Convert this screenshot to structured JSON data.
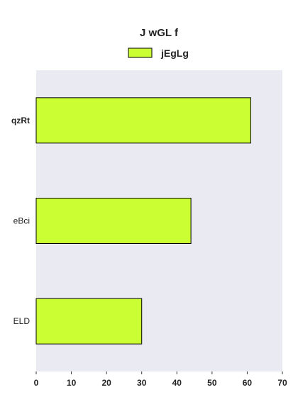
{
  "chart_data": {
    "type": "bar",
    "orientation": "horizontal",
    "title": "J wGL f",
    "categories": [
      "qzRt",
      "eBci",
      "ELD"
    ],
    "series": [
      {
        "name": "jEgLg",
        "values": [
          61,
          44,
          30
        ],
        "color": "#ccff33"
      }
    ],
    "xlabel": "",
    "ylabel": "",
    "xlim": [
      0,
      70
    ],
    "xticks": [
      0,
      10,
      20,
      30,
      40,
      50,
      60,
      70
    ],
    "grid": false,
    "legend_position": "top-center",
    "plot_background": "#eaeaf2",
    "bar_edge_color": "#000000"
  }
}
